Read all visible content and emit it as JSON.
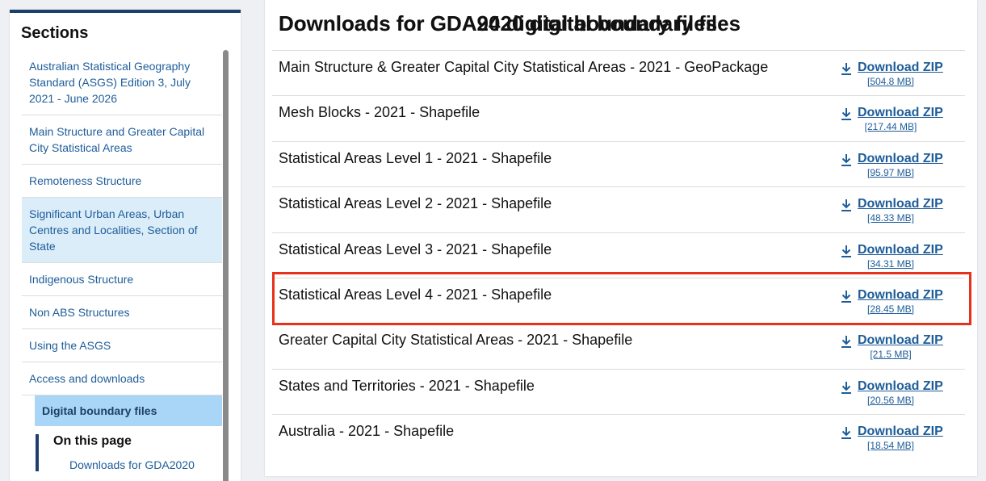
{
  "sidebar": {
    "title": "Sections",
    "items": [
      "Australian Statistical Geography Standard (ASGS) Edition 3, July 2021 - June 2026",
      "Main Structure and Greater Capital City Statistical Areas",
      "Remoteness Structure",
      "Significant Urban Areas, Urban Centres and Localities, Section of State",
      "Indigenous Structure",
      "Non ABS Structures",
      "Using the ASGS",
      "Access and downloads"
    ],
    "active": "Digital boundary files",
    "on_this_page": {
      "title": "On this page",
      "links": [
        "Downloads for GDA2020"
      ]
    }
  },
  "main": {
    "title": "Downloads for GDA2020 digital boundary files",
    "rows": [
      {
        "name": "Main Structure & Greater Capital City Statistical Areas - 2021 - GeoPackage",
        "link": "Download ZIP",
        "size": "[504.8 MB]"
      },
      {
        "name": "Mesh Blocks - 2021 - Shapefile",
        "link": "Download ZIP",
        "size": "[217.44 MB]"
      },
      {
        "name": "Statistical Areas Level 1 - 2021 - Shapefile",
        "link": "Download ZIP",
        "size": "[95.97 MB]"
      },
      {
        "name": "Statistical Areas Level 2 - 2021 - Shapefile",
        "link": "Download ZIP",
        "size": "[48.33 MB]"
      },
      {
        "name": "Statistical Areas Level 3 - 2021 - Shapefile",
        "link": "Download ZIP",
        "size": "[34.31 MB]"
      },
      {
        "name": "Statistical Areas Level 4 - 2021 - Shapefile",
        "link": "Download ZIP",
        "size": "[28.45 MB]"
      },
      {
        "name": "Greater Capital City Statistical Areas - 2021 - Shapefile",
        "link": "Download ZIP",
        "size": "[21.5 MB]"
      },
      {
        "name": "States and Territories - 2021 - Shapefile",
        "link": "Download ZIP",
        "size": "[20.56 MB]"
      },
      {
        "name": "Australia - 2021 - Shapefile",
        "link": "Download ZIP",
        "size": "[18.54 MB]"
      }
    ],
    "next_title": "Downloads for GDA94 digital boundary files"
  }
}
